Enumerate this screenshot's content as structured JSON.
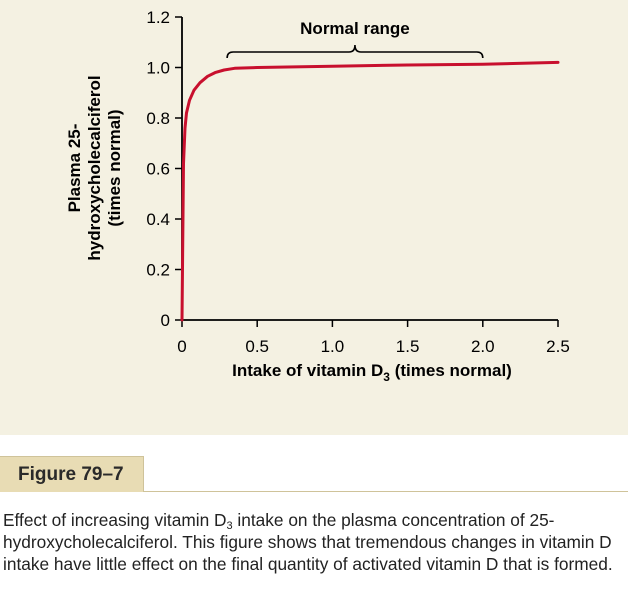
{
  "chart_data": {
    "type": "line",
    "xlabel_main": "Intake of vitamin D",
    "xlabel_sub": "3",
    "xlabel_tail": " (times normal)",
    "ylabel_lines": [
      "Plasma 25-",
      "hydroxycholecalciferol",
      "(times normal)"
    ],
    "xlim": [
      0,
      2.5
    ],
    "ylim": [
      0,
      1.2
    ],
    "xticks": [
      "0",
      "0.5",
      "1.0",
      "1.5",
      "2.0",
      "2.5"
    ],
    "yticks": [
      "0",
      "0.2",
      "0.4",
      "0.6",
      "0.8",
      "1.0",
      "1.2"
    ],
    "series": [
      {
        "color": "#c8102e",
        "x": [
          0,
          0.01,
          0.02,
          0.03,
          0.05,
          0.08,
          0.12,
          0.17,
          0.22,
          0.28,
          0.35,
          0.5,
          1.0,
          1.5,
          2.0,
          2.5
        ],
        "y": [
          0,
          0.62,
          0.76,
          0.82,
          0.87,
          0.91,
          0.94,
          0.965,
          0.98,
          0.99,
          0.997,
          1.0,
          1.005,
          1.01,
          1.013,
          1.02
        ]
      }
    ],
    "annotation": {
      "label": "Normal range",
      "x_start": 0.3,
      "x_end": 2.0
    }
  },
  "figure": {
    "tab_label": "Figure 79–7",
    "caption_before_sub": "Effect of increasing vitamin D",
    "caption_sub": "3",
    "caption_after_sub": " intake on the plasma concentration of 25-hydroxycholecalciferol. This figure shows that tremendous changes in vitamin D intake have little effect on the final quantity of activated vitamin D that is formed."
  }
}
